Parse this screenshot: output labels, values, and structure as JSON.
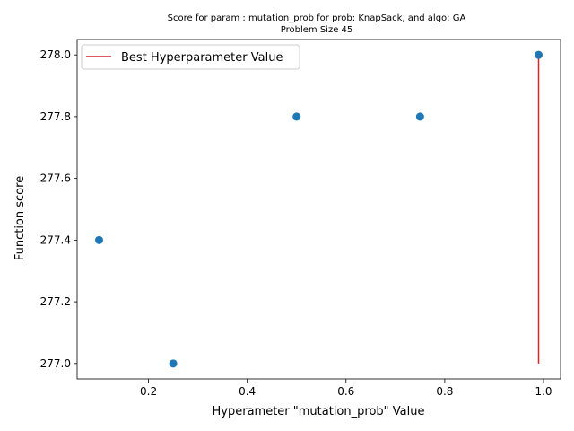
{
  "chart_data": {
    "type": "scatter",
    "title": "Score for param : mutation_prob for prob: KnapSack, and algo: GA",
    "subtitle": "Problem Size 45",
    "xlabel": "Hyperameter \"mutation_prob\" Value",
    "ylabel": "Function score",
    "xlim": [
      0.0555,
      1.0345
    ],
    "ylim": [
      276.95,
      278.05
    ],
    "xticks": [
      0.2,
      0.4,
      0.6,
      0.8,
      1.0
    ],
    "xtick_labels": [
      "0.2",
      "0.4",
      "0.6",
      "0.8",
      "1.0"
    ],
    "yticks": [
      277.0,
      277.2,
      277.4,
      277.6,
      277.8,
      278.0
    ],
    "ytick_labels": [
      "277.0",
      "277.2",
      "277.4",
      "277.6",
      "277.8",
      "278.0"
    ],
    "grid": false,
    "legend": {
      "placement": "top-left",
      "entries": [
        "Best Hyperparameter Value"
      ]
    },
    "series": [
      {
        "kind": "scatter",
        "color": "#1f77b4",
        "points": [
          {
            "x": 0.1,
            "y": 277.4
          },
          {
            "x": 0.25,
            "y": 277.0
          },
          {
            "x": 0.5,
            "y": 277.8
          },
          {
            "x": 0.75,
            "y": 277.8
          },
          {
            "x": 0.99,
            "y": 278.0
          }
        ]
      },
      {
        "kind": "vline",
        "name": "Best Hyperparameter Value",
        "color": "#d62728",
        "x": 0.99,
        "y_from": 277.0,
        "y_to": 278.0
      }
    ]
  }
}
